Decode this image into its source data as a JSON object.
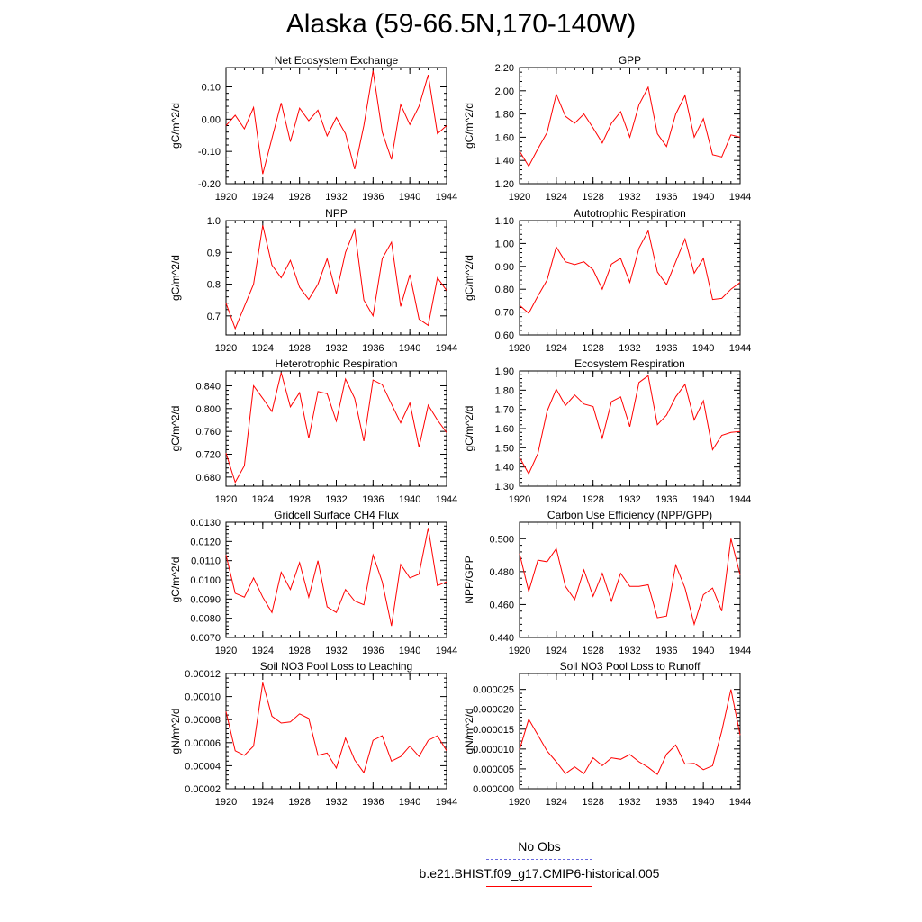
{
  "page_title": "Alaska (59-66.5N,170-140W)",
  "colors": {
    "model_line": "#ff0000",
    "obs_line": "#6a6adf",
    "axes": "#000000"
  },
  "legend": {
    "obs_label": "No Obs",
    "model_label": "b.e21.BHIST.f09_g17.CMIP6-historical.005"
  },
  "chart_data": [
    {
      "type": "line",
      "title": "Net Ecosystem Exchange",
      "ylabel": "gC/m^2/d",
      "xlim": [
        1920,
        1944
      ],
      "ylim": [
        -0.2,
        0.16
      ],
      "xticks": [
        1920,
        1924,
        1928,
        1932,
        1936,
        1940,
        1944
      ],
      "xtick_labels": [
        "1920",
        "1924",
        "1928",
        "1932",
        "1936",
        "1940",
        "1944"
      ],
      "yticks": [
        -0.2,
        -0.1,
        0.0,
        0.1
      ],
      "ytick_labels": [
        "-0.20",
        "-0.10",
        "0.00",
        "0.10"
      ],
      "series": [
        {
          "x": [
            1920,
            1921,
            1922,
            1923,
            1924,
            1925,
            1926,
            1927,
            1928,
            1929,
            1930,
            1931,
            1932,
            1933,
            1934,
            1935,
            1936,
            1937,
            1938,
            1939,
            1940,
            1941,
            1942,
            1943,
            1944
          ],
          "values": [
            -0.02,
            0.012,
            -0.03,
            0.036,
            -0.17,
            -0.06,
            0.05,
            -0.07,
            0.034,
            -0.005,
            0.028,
            -0.052,
            0.005,
            -0.045,
            -0.155,
            -0.02,
            0.15,
            -0.04,
            -0.125,
            0.045,
            -0.017,
            0.04,
            0.137,
            -0.045,
            -0.02
          ]
        }
      ]
    },
    {
      "type": "line",
      "title": "GPP",
      "ylabel": "gC/m^2/d",
      "xlim": [
        1920,
        1944
      ],
      "ylim": [
        1.2,
        2.2
      ],
      "xticks": [
        1920,
        1924,
        1928,
        1932,
        1936,
        1940,
        1944
      ],
      "xtick_labels": [
        "1920",
        "1924",
        "1928",
        "1932",
        "1936",
        "1940",
        "1944"
      ],
      "yticks": [
        1.2,
        1.4,
        1.6,
        1.8,
        2.0,
        2.2
      ],
      "ytick_labels": [
        "1.20",
        "1.40",
        "1.60",
        "1.80",
        "2.00",
        "2.20"
      ],
      "series": [
        {
          "x": [
            1920,
            1921,
            1922,
            1923,
            1924,
            1925,
            1926,
            1927,
            1928,
            1929,
            1930,
            1931,
            1932,
            1933,
            1934,
            1935,
            1936,
            1937,
            1938,
            1939,
            1940,
            1941,
            1942,
            1943,
            1944
          ],
          "values": [
            1.48,
            1.35,
            1.5,
            1.64,
            1.97,
            1.78,
            1.72,
            1.8,
            1.68,
            1.55,
            1.72,
            1.82,
            1.6,
            1.88,
            2.03,
            1.63,
            1.52,
            1.8,
            1.96,
            1.6,
            1.76,
            1.45,
            1.43,
            1.62,
            1.6
          ]
        }
      ]
    },
    {
      "type": "line",
      "title": "NPP",
      "ylabel": "gC/m^2/d",
      "xlim": [
        1920,
        1944
      ],
      "ylim": [
        0.64,
        1.0
      ],
      "xticks": [
        1920,
        1924,
        1928,
        1932,
        1936,
        1940,
        1944
      ],
      "xtick_labels": [
        "1920",
        "1924",
        "1928",
        "1932",
        "1936",
        "1940",
        "1944"
      ],
      "yticks": [
        0.7,
        0.8,
        0.9,
        1.0
      ],
      "ytick_labels": [
        "0.7",
        "0.8",
        "0.9",
        "1.0"
      ],
      "series": [
        {
          "x": [
            1920,
            1921,
            1922,
            1923,
            1924,
            1925,
            1926,
            1927,
            1928,
            1929,
            1930,
            1931,
            1932,
            1933,
            1934,
            1935,
            1936,
            1937,
            1938,
            1939,
            1940,
            1941,
            1942,
            1943,
            1944
          ],
          "values": [
            0.74,
            0.66,
            0.73,
            0.8,
            0.985,
            0.86,
            0.82,
            0.875,
            0.79,
            0.752,
            0.8,
            0.88,
            0.77,
            0.9,
            0.972,
            0.75,
            0.7,
            0.88,
            0.932,
            0.73,
            0.83,
            0.69,
            0.67,
            0.82,
            0.78
          ]
        }
      ]
    },
    {
      "type": "line",
      "title": "Autotrophic Respiration",
      "ylabel": "gC/m^2/d",
      "xlim": [
        1920,
        1944
      ],
      "ylim": [
        0.6,
        1.1
      ],
      "xticks": [
        1920,
        1924,
        1928,
        1932,
        1936,
        1940,
        1944
      ],
      "xtick_labels": [
        "1920",
        "1924",
        "1928",
        "1932",
        "1936",
        "1940",
        "1944"
      ],
      "yticks": [
        0.6,
        0.7,
        0.8,
        0.9,
        1.0,
        1.1
      ],
      "ytick_labels": [
        "0.60",
        "0.70",
        "0.80",
        "0.90",
        "1.00",
        "1.10"
      ],
      "series": [
        {
          "x": [
            1920,
            1921,
            1922,
            1923,
            1924,
            1925,
            1926,
            1927,
            1928,
            1929,
            1930,
            1931,
            1932,
            1933,
            1934,
            1935,
            1936,
            1937,
            1938,
            1939,
            1940,
            1941,
            1942,
            1943,
            1944
          ],
          "values": [
            0.73,
            0.695,
            0.77,
            0.84,
            0.985,
            0.92,
            0.908,
            0.92,
            0.885,
            0.8,
            0.91,
            0.935,
            0.83,
            0.98,
            1.055,
            0.875,
            0.82,
            0.92,
            1.02,
            0.87,
            0.935,
            0.755,
            0.76,
            0.8,
            0.83
          ]
        }
      ]
    },
    {
      "type": "line",
      "title": "Heterotrophic Respiration",
      "ylabel": "gC/m^2/d",
      "xlim": [
        1920,
        1944
      ],
      "ylim": [
        0.664,
        0.866
      ],
      "xticks": [
        1920,
        1924,
        1928,
        1932,
        1936,
        1940,
        1944
      ],
      "xtick_labels": [
        "1920",
        "1924",
        "1928",
        "1932",
        "1936",
        "1940",
        "1944"
      ],
      "yticks": [
        0.68,
        0.72,
        0.76,
        0.8,
        0.84
      ],
      "ytick_labels": [
        "0.680",
        "0.720",
        "0.760",
        "0.800",
        "0.840"
      ],
      "series": [
        {
          "x": [
            1920,
            1921,
            1922,
            1923,
            1924,
            1925,
            1926,
            1927,
            1928,
            1929,
            1930,
            1931,
            1932,
            1933,
            1934,
            1935,
            1936,
            1937,
            1938,
            1939,
            1940,
            1941,
            1942,
            1943,
            1944
          ],
          "values": [
            0.722,
            0.671,
            0.7,
            0.84,
            0.818,
            0.795,
            0.863,
            0.803,
            0.828,
            0.748,
            0.83,
            0.826,
            0.778,
            0.852,
            0.818,
            0.743,
            0.85,
            0.842,
            0.808,
            0.775,
            0.81,
            0.732,
            0.806,
            0.78,
            0.758
          ]
        }
      ]
    },
    {
      "type": "line",
      "title": "Ecosystem Respiration",
      "ylabel": "gC/m^2/d",
      "xlim": [
        1920,
        1944
      ],
      "ylim": [
        1.3,
        1.9
      ],
      "xticks": [
        1920,
        1924,
        1928,
        1932,
        1936,
        1940,
        1944
      ],
      "xtick_labels": [
        "1920",
        "1924",
        "1928",
        "1932",
        "1936",
        "1940",
        "1944"
      ],
      "yticks": [
        1.3,
        1.4,
        1.5,
        1.6,
        1.7,
        1.8,
        1.9
      ],
      "ytick_labels": [
        "1.30",
        "1.40",
        "1.50",
        "1.60",
        "1.70",
        "1.80",
        "1.90"
      ],
      "series": [
        {
          "x": [
            1920,
            1921,
            1922,
            1923,
            1924,
            1925,
            1926,
            1927,
            1928,
            1929,
            1930,
            1931,
            1932,
            1933,
            1934,
            1935,
            1936,
            1937,
            1938,
            1939,
            1940,
            1941,
            1942,
            1943,
            1944
          ],
          "values": [
            1.45,
            1.365,
            1.47,
            1.69,
            1.805,
            1.72,
            1.775,
            1.728,
            1.715,
            1.55,
            1.74,
            1.765,
            1.61,
            1.84,
            1.875,
            1.62,
            1.67,
            1.765,
            1.83,
            1.645,
            1.745,
            1.49,
            1.565,
            1.58,
            1.585
          ]
        }
      ]
    },
    {
      "type": "line",
      "title": "Gridcell Surface CH4 Flux",
      "ylabel": "gC/m^2/d",
      "xlim": [
        1920,
        1944
      ],
      "ylim": [
        0.007,
        0.013
      ],
      "xticks": [
        1920,
        1924,
        1928,
        1932,
        1936,
        1940,
        1944
      ],
      "xtick_labels": [
        "1920",
        "1924",
        "1928",
        "1932",
        "1936",
        "1940",
        "1944"
      ],
      "yticks": [
        0.007,
        0.008,
        0.009,
        0.01,
        0.011,
        0.012,
        0.013
      ],
      "ytick_labels": [
        "0.0070",
        "0.0080",
        "0.0090",
        "0.0100",
        "0.0110",
        "0.0120",
        "0.0130"
      ],
      "series": [
        {
          "x": [
            1920,
            1921,
            1922,
            1923,
            1924,
            1925,
            1926,
            1927,
            1928,
            1929,
            1930,
            1931,
            1932,
            1933,
            1934,
            1935,
            1936,
            1937,
            1938,
            1939,
            1940,
            1941,
            1942,
            1943,
            1944
          ],
          "values": [
            0.0113,
            0.0093,
            0.0091,
            0.0101,
            0.0091,
            0.0083,
            0.0104,
            0.0095,
            0.0109,
            0.0091,
            0.011,
            0.0086,
            0.0083,
            0.0095,
            0.0089,
            0.0087,
            0.0113,
            0.0099,
            0.0076,
            0.0108,
            0.0101,
            0.0103,
            0.0127,
            0.0097,
            0.0099
          ]
        }
      ]
    },
    {
      "type": "line",
      "title": "Carbon Use Efficiency (NPP/GPP)",
      "ylabel": "NPP/GPP",
      "xlim": [
        1920,
        1944
      ],
      "ylim": [
        0.44,
        0.51
      ],
      "xticks": [
        1920,
        1924,
        1928,
        1932,
        1936,
        1940,
        1944
      ],
      "xtick_labels": [
        "1920",
        "1924",
        "1928",
        "1932",
        "1936",
        "1940",
        "1944"
      ],
      "yticks": [
        0.44,
        0.46,
        0.48,
        0.5
      ],
      "ytick_labels": [
        "0.440",
        "0.460",
        "0.480",
        "0.500"
      ],
      "series": [
        {
          "x": [
            1920,
            1921,
            1922,
            1923,
            1924,
            1925,
            1926,
            1927,
            1928,
            1929,
            1930,
            1931,
            1932,
            1933,
            1934,
            1935,
            1936,
            1937,
            1938,
            1939,
            1940,
            1941,
            1942,
            1943,
            1944
          ],
          "values": [
            0.491,
            0.468,
            0.487,
            0.486,
            0.494,
            0.471,
            0.463,
            0.481,
            0.465,
            0.479,
            0.462,
            0.479,
            0.471,
            0.471,
            0.472,
            0.452,
            0.453,
            0.484,
            0.47,
            0.448,
            0.466,
            0.47,
            0.456,
            0.5,
            0.478
          ]
        }
      ]
    },
    {
      "type": "line",
      "title": "Soil NO3 Pool Loss to Leaching",
      "ylabel": "gN/m^2/d",
      "xlim": [
        1920,
        1944
      ],
      "ylim": [
        2e-05,
        0.00012
      ],
      "xticks": [
        1920,
        1924,
        1928,
        1932,
        1936,
        1940,
        1944
      ],
      "xtick_labels": [
        "1920",
        "1924",
        "1928",
        "1932",
        "1936",
        "1940",
        "1944"
      ],
      "yticks": [
        2e-05,
        4e-05,
        6e-05,
        8e-05,
        0.0001,
        0.00012
      ],
      "ytick_labels": [
        "0.00002",
        "0.00004",
        "0.00006",
        "0.00008",
        "0.00010",
        "0.00012"
      ],
      "series": [
        {
          "x": [
            1920,
            1921,
            1922,
            1923,
            1924,
            1925,
            1926,
            1927,
            1928,
            1929,
            1930,
            1931,
            1932,
            1933,
            1934,
            1935,
            1936,
            1937,
            1938,
            1939,
            1940,
            1941,
            1942,
            1943,
            1944
          ],
          "values": [
            8.7e-05,
            5.3e-05,
            4.9e-05,
            5.7e-05,
            0.000112,
            8.3e-05,
            7.7e-05,
            7.8e-05,
            8.5e-05,
            8.1e-05,
            4.9e-05,
            5.1e-05,
            3.8e-05,
            6.4e-05,
            4.5e-05,
            3.4e-05,
            6.2e-05,
            6.6e-05,
            4.4e-05,
            4.8e-05,
            5.7e-05,
            4.8e-05,
            6.2e-05,
            6.6e-05,
            5.3e-05
          ]
        }
      ]
    },
    {
      "type": "line",
      "title": "Soil NO3 Pool Loss to Runoff",
      "ylabel": "gN/m^2/d",
      "xlim": [
        1920,
        1944
      ],
      "ylim": [
        0,
        2.9e-05
      ],
      "xticks": [
        1920,
        1924,
        1928,
        1932,
        1936,
        1940,
        1944
      ],
      "xtick_labels": [
        "1920",
        "1924",
        "1928",
        "1932",
        "1936",
        "1940",
        "1944"
      ],
      "yticks": [
        0,
        5e-06,
        1e-05,
        1.5e-05,
        2e-05,
        2.5e-05
      ],
      "ytick_labels": [
        "0.000000",
        "0.000005",
        "0.000010",
        "0.000015",
        "0.000020",
        "0.000025"
      ],
      "series": [
        {
          "x": [
            1920,
            1921,
            1922,
            1923,
            1924,
            1925,
            1926,
            1927,
            1928,
            1929,
            1930,
            1931,
            1932,
            1933,
            1934,
            1935,
            1936,
            1937,
            1938,
            1939,
            1940,
            1941,
            1942,
            1943,
            1944
          ],
          "values": [
            9.8e-06,
            1.75e-05,
            1.35e-05,
            9.5e-06,
            6.8e-06,
            3.8e-06,
            5.5e-06,
            3.8e-06,
            7.8e-06,
            5.8e-06,
            7.8e-06,
            7.4e-06,
            8.6e-06,
            6.8e-06,
            5.4e-06,
            3.6e-06,
            8.7e-06,
            1.1e-05,
            6.2e-06,
            6.4e-06,
            4.8e-06,
            5.8e-06,
            1.45e-05,
            2.5e-05,
            1.35e-05
          ]
        }
      ]
    }
  ]
}
